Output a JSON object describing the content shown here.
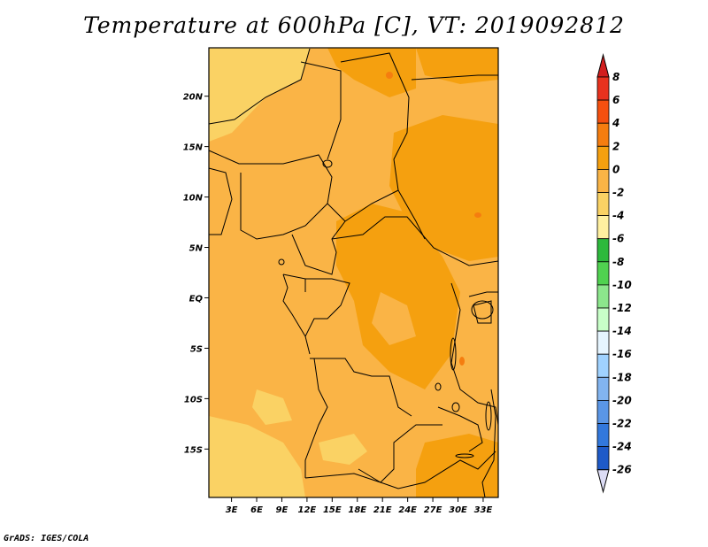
{
  "title": "Temperature at 600hPa [C], VT: 2019092812",
  "credit": "GrADS: IGES/COLA",
  "map": {
    "lat_ticks": [
      {
        "value": 20,
        "label": "20N"
      },
      {
        "value": 15,
        "label": "15N"
      },
      {
        "value": 10,
        "label": "10N"
      },
      {
        "value": 5,
        "label": "5N"
      },
      {
        "value": 0,
        "label": "EQ"
      },
      {
        "value": -5,
        "label": "5S"
      },
      {
        "value": -10,
        "label": "10S"
      },
      {
        "value": -15,
        "label": "15S"
      }
    ],
    "lon_ticks": [
      {
        "value": 3,
        "label": "3E"
      },
      {
        "value": 6,
        "label": "6E"
      },
      {
        "value": 9,
        "label": "9E"
      },
      {
        "value": 12,
        "label": "12E"
      },
      {
        "value": 15,
        "label": "15E"
      },
      {
        "value": 18,
        "label": "18E"
      },
      {
        "value": 21,
        "label": "21E"
      },
      {
        "value": 24,
        "label": "24E"
      },
      {
        "value": 27,
        "label": "27E"
      },
      {
        "value": 30,
        "label": "30E"
      },
      {
        "value": 33,
        "label": "33E"
      }
    ],
    "lon_range": [
      0.3,
      34.8
    ],
    "lat_range": [
      -19.8,
      24.8
    ]
  },
  "colorbar": {
    "levels": [
      {
        "label": "8",
        "color": "#e8321e"
      },
      {
        "label": "6",
        "color": "#f5500f"
      },
      {
        "label": "4",
        "color": "#f57d0f"
      },
      {
        "label": "2",
        "color": "#f5a00f"
      },
      {
        "label": "0",
        "color": "#fab446"
      },
      {
        "label": "-2",
        "color": "#fad264"
      },
      {
        "label": "-4",
        "color": "#fff0a0"
      },
      {
        "label": "-6",
        "color": "#2db93c"
      },
      {
        "label": "-8",
        "color": "#50d250"
      },
      {
        "label": "-10",
        "color": "#8ce68c"
      },
      {
        "label": "-12",
        "color": "#c8ffc8"
      },
      {
        "label": "-14",
        "color": "#e6f5ff"
      },
      {
        "label": "-16",
        "color": "#a0d2ff"
      },
      {
        "label": "-18",
        "color": "#82b4f0"
      },
      {
        "label": "-20",
        "color": "#5a96e6"
      },
      {
        "label": "-22",
        "color": "#3278dc"
      },
      {
        "label": "-24",
        "color": "#1e5ac8"
      },
      {
        "label": "-26",
        "color": "#0f3cb4"
      }
    ],
    "top_color": "#d21e1e",
    "bottom_color": "#dcdcf5",
    "extra_color": "#0a0a6e"
  }
}
